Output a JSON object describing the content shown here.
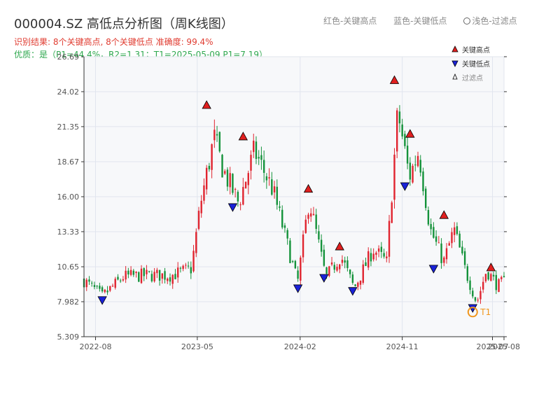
{
  "title": "000004.SZ 高低点分析图（周K线图）",
  "subtitle_result": "识别结果: 8个关键高点, 8个关键低点 准确度: 99.4%",
  "subtitle_quality": "优质：是（P1=44.4%，R2=1.31；T1=2025-05-09 P1=7.19）",
  "legend_top": {
    "red": "红色-关键高点",
    "blue": "蓝色-关键低点",
    "hollow": "浅色-过滤点"
  },
  "legend_inner": {
    "high": "关键高点",
    "low": "关键低点",
    "filtered": "过滤点"
  },
  "colors": {
    "up": "#e0242f",
    "down": "#14923a",
    "high_marker": "#e01f1f",
    "low_marker": "#1a22d8",
    "t1_marker": "#f0961c",
    "grid": "#e1e5ee",
    "plot_bg": "#f7f8fa"
  },
  "chart_data": {
    "type": "candlestick",
    "y_ticks": [
      "5.309",
      "7.982",
      "10.65",
      "13.33",
      "16.00",
      "18.67",
      "21.35",
      "24.02",
      "26.69"
    ],
    "ylim": [
      5.309,
      26.69
    ],
    "x_ticks": [
      {
        "date": "2022-08-01",
        "label": "2022-08"
      },
      {
        "date": "2023-05-01",
        "label": "2023-05"
      },
      {
        "date": "2024-02-01",
        "label": "2024-02"
      },
      {
        "date": "2024-11-01",
        "label": "2024-11"
      },
      {
        "date": "2025-07-01",
        "label": "2025-07"
      },
      {
        "date": "2025-08-01",
        "label": "2025-08"
      }
    ],
    "xlim": [
      "2022-07-01",
      "2025-08-01"
    ],
    "anchors": [
      {
        "date": "2022-07-01",
        "close": 9.6
      },
      {
        "date": "2022-08-19",
        "close": 8.4
      },
      {
        "date": "2022-10-15",
        "close": 9.9
      },
      {
        "date": "2022-12-20",
        "close": 10.0
      },
      {
        "date": "2023-02-20",
        "close": 10.0
      },
      {
        "date": "2023-04-15",
        "close": 10.5
      },
      {
        "date": "2023-05-10",
        "close": 15.5
      },
      {
        "date": "2023-06-15",
        "close": 20.5
      },
      {
        "date": "2023-07-10",
        "close": 18.0
      },
      {
        "date": "2023-08-20",
        "close": 15.5
      },
      {
        "date": "2023-10-01",
        "close": 19.5
      },
      {
        "date": "2023-11-20",
        "close": 16.5
      },
      {
        "date": "2024-01-25",
        "close": 9.4
      },
      {
        "date": "2024-02-25",
        "close": 15.8
      },
      {
        "date": "2024-04-10",
        "close": 9.8
      },
      {
        "date": "2024-05-20",
        "close": 11.5
      },
      {
        "date": "2024-06-25",
        "close": 9.0
      },
      {
        "date": "2024-08-15",
        "close": 12.0
      },
      {
        "date": "2024-09-20",
        "close": 11.0
      },
      {
        "date": "2024-10-20",
        "close": 22.5
      },
      {
        "date": "2024-11-20",
        "close": 17.5
      },
      {
        "date": "2024-12-15",
        "close": 19.5
      },
      {
        "date": "2025-01-15",
        "close": 13.5
      },
      {
        "date": "2025-02-20",
        "close": 11.0
      },
      {
        "date": "2025-03-20",
        "close": 13.5
      },
      {
        "date": "2025-04-20",
        "close": 10.3
      },
      {
        "date": "2025-05-20",
        "close": 7.9
      },
      {
        "date": "2025-06-15",
        "close": 10.4
      },
      {
        "date": "2025-07-15",
        "close": 9.2
      },
      {
        "date": "2025-08-01",
        "close": 9.5
      }
    ],
    "key_highs": [
      {
        "date": "2023-05-26",
        "price": 23.0
      },
      {
        "date": "2023-09-01",
        "price": 20.6
      },
      {
        "date": "2024-02-23",
        "price": 16.6
      },
      {
        "date": "2024-05-17",
        "price": 12.2
      },
      {
        "date": "2024-10-11",
        "price": 24.9
      },
      {
        "date": "2024-11-22",
        "price": 20.8
      },
      {
        "date": "2025-02-21",
        "price": 14.6
      },
      {
        "date": "2025-06-27",
        "price": 10.6
      }
    ],
    "key_lows": [
      {
        "date": "2022-08-19",
        "price": 8.1
      },
      {
        "date": "2023-08-04",
        "price": 15.2
      },
      {
        "date": "2024-01-26",
        "price": 9.0
      },
      {
        "date": "2024-04-05",
        "price": 9.8
      },
      {
        "date": "2024-06-21",
        "price": 8.8
      },
      {
        "date": "2024-11-08",
        "price": 16.8
      },
      {
        "date": "2025-01-24",
        "price": 10.5
      },
      {
        "date": "2025-05-09",
        "price": 7.5
      }
    ],
    "t1": {
      "date": "2025-05-09",
      "price": 7.19,
      "label": "T1"
    }
  }
}
